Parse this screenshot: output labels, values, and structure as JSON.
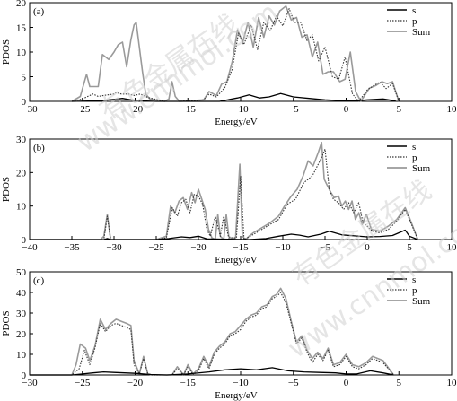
{
  "figure": {
    "background": "#ffffff",
    "colors": {
      "s": "#000000",
      "p": "#333333",
      "sum": "#9a9a9a",
      "frame": "#000000",
      "watermark": "#c8c8c8"
    },
    "watermark": {
      "text_cn": "有色金属在线",
      "text_url": "www.cnnmol.com"
    }
  },
  "chart_data": [
    {
      "type": "line",
      "panel_label": "(a)",
      "xlabel": "Energy/eV",
      "ylabel": "PDOS",
      "xlim": [
        -30,
        10
      ],
      "ylim": [
        0,
        20
      ],
      "xticks": [
        -30,
        -25,
        -20,
        -15,
        -10,
        -5,
        0,
        5,
        10
      ],
      "yticks": [
        0,
        5,
        10,
        15,
        20
      ],
      "legend": [
        "s",
        "p",
        "Sum"
      ],
      "legend_position": "top-right",
      "grid": false,
      "series": [
        {
          "name": "s",
          "line": "solid-thin",
          "x": [
            -26,
            -24,
            -23,
            -22,
            -21.2,
            -20.4,
            -19.2,
            -18,
            -12,
            -10.3,
            -9.2,
            -8.2,
            -7.3,
            -6.2,
            -5,
            -3.5,
            -2,
            -1,
            0,
            0.8,
            2,
            3.5,
            4.7
          ],
          "y": [
            0,
            0.1,
            0.2,
            0.4,
            0.6,
            0.3,
            0.1,
            0,
            0,
            0.7,
            1.3,
            0.7,
            0.9,
            1.6,
            0.9,
            0.6,
            0.3,
            0.2,
            0.1,
            0.1,
            0.3,
            0.5,
            0.1
          ]
        },
        {
          "name": "p",
          "line": "dotted",
          "x": [
            -26,
            -25,
            -24,
            -23.5,
            -23,
            -22,
            -21.8,
            -21.3,
            -20.6,
            -20.1,
            -19.5,
            -18.8,
            -17.2,
            -16.5,
            -15.8,
            -13.5,
            -13,
            -12.3,
            -11.5,
            -10.8,
            -10.2,
            -9.7,
            -9,
            -8.4,
            -7.8,
            -7.2,
            -6.6,
            -6,
            -5.4,
            -4.9,
            -4.3,
            -3.7,
            -3.2,
            -2.6,
            -2,
            -1.3,
            -0.7,
            -0.1,
            0.6,
            1.2,
            2,
            2.6,
            3.2,
            3.8,
            4.4,
            5
          ],
          "y": [
            0,
            0.5,
            1.5,
            1,
            1.2,
            1.5,
            1.8,
            1.5,
            1.5,
            1.2,
            1.5,
            0.8,
            0,
            0,
            0,
            0.3,
            1.5,
            0.9,
            2.8,
            6.5,
            13.8,
            11.5,
            15.5,
            10.5,
            16,
            14.3,
            17.3,
            15.3,
            18.8,
            16,
            16,
            12.3,
            13.5,
            8.2,
            11,
            5,
            4.5,
            9,
            1.5,
            0,
            2.3,
            3.2,
            3.9,
            2.6,
            3.6,
            0
          ]
        },
        {
          "name": "Sum",
          "line": "solid-grey",
          "x": [
            -26,
            -25.2,
            -24.6,
            -24.3,
            -23.9,
            -23.5,
            -23.1,
            -22.5,
            -22,
            -21.6,
            -21.2,
            -20.8,
            -20.4,
            -20.1,
            -19.9,
            -19.6,
            -19.3,
            -19,
            -18.6,
            -17.2,
            -16.8,
            -16.5,
            -16.2,
            -15.8,
            -13.5,
            -13,
            -12.3,
            -11.8,
            -11.3,
            -10.8,
            -10.3,
            -9.8,
            -9.3,
            -8.8,
            -8.3,
            -7.8,
            -7.3,
            -6.8,
            -6.3,
            -5.7,
            -5.2,
            -4.7,
            -4.2,
            -3.7,
            -3.2,
            -2.7,
            -2.2,
            -1.7,
            -1.2,
            -0.6,
            -0.1,
            0.4,
            0.9,
            1.4,
            2.2,
            2.8,
            3.4,
            3.9,
            4.4,
            5
          ],
          "y": [
            0,
            1,
            5.5,
            3,
            3,
            3,
            9.5,
            8.5,
            10,
            11.5,
            12,
            7,
            12.5,
            15.5,
            16,
            11,
            6,
            1.5,
            0.5,
            0,
            0.5,
            4,
            1,
            0,
            0.3,
            2,
            1.2,
            3.5,
            4,
            8,
            14.5,
            12,
            16,
            11,
            17,
            13,
            17.3,
            15.5,
            18.3,
            19.3,
            16.5,
            17,
            13,
            13.5,
            9,
            12,
            5.5,
            6,
            6,
            4,
            4.5,
            10,
            2,
            0,
            2.7,
            3.2,
            4,
            3.6,
            4,
            0
          ]
        }
      ]
    },
    {
      "type": "line",
      "panel_label": "(b)",
      "xlabel": "Energy/eV",
      "ylabel": "PDOS",
      "xlim": [
        -40,
        10
      ],
      "ylim": [
        0,
        30
      ],
      "xticks": [
        -40,
        -35,
        -30,
        -25,
        -20,
        -15,
        -10,
        -5,
        0,
        5,
        10
      ],
      "yticks": [
        0,
        10,
        20,
        30
      ],
      "legend": [
        "s",
        "p",
        "Sum"
      ],
      "legend_position": "top-right",
      "grid": false,
      "series": [
        {
          "name": "s",
          "line": "solid-thin",
          "x": [
            -40,
            -31.2,
            -30.8,
            -30.4,
            -25,
            -23.5,
            -22,
            -21,
            -20,
            -19,
            -14,
            -12,
            -10.5,
            -9,
            -8,
            -7,
            -5.5,
            -4.5,
            -3,
            -1.5,
            0,
            1.5,
            3,
            4.5,
            5,
            6
          ],
          "y": [
            0,
            0,
            0.3,
            0,
            0,
            0.3,
            0.8,
            0.6,
            1,
            0.2,
            0,
            0.3,
            1,
            1.6,
            1.3,
            0.8,
            1.6,
            2.5,
            1.4,
            1.1,
            0.8,
            0.9,
            1.2,
            2.8,
            1,
            0
          ]
        },
        {
          "name": "p",
          "line": "dotted",
          "x": [
            -40,
            -31.2,
            -30.8,
            -30.4,
            -25,
            -23.8,
            -23.1,
            -22.5,
            -22,
            -21.5,
            -21,
            -20.5,
            -20,
            -19.5,
            -19,
            -18.6,
            -18,
            -17.4,
            -17,
            -16.4,
            -16,
            -15.5,
            -15,
            -14.6,
            -14.2,
            -13.5,
            -12.5,
            -11.5,
            -10.5,
            -9.5,
            -8.5,
            -7.5,
            -6.5,
            -5.5,
            -5,
            -4.5,
            -4,
            -3.4,
            -2.8,
            -2.2,
            -1.6,
            -1,
            -0.5,
            0,
            0.6,
            1.5,
            2.5,
            3.5,
            4.5,
            5,
            6
          ],
          "y": [
            0,
            0,
            7,
            0,
            0,
            0.5,
            9.5,
            7,
            11,
            12,
            8,
            13.5,
            13,
            10.5,
            3,
            1,
            7,
            1,
            7,
            0.5,
            0.5,
            0.5,
            19,
            0,
            0.5,
            1.5,
            3,
            4.5,
            6,
            10.5,
            12,
            17,
            19,
            24,
            27,
            15,
            12,
            11,
            9,
            11,
            8,
            11,
            5,
            4,
            2.5,
            2,
            3,
            5.5,
            9,
            6,
            0
          ]
        },
        {
          "name": "Sum",
          "line": "solid-grey",
          "x": [
            -40,
            -31.6,
            -31.2,
            -30.8,
            -30.4,
            -25,
            -23.8,
            -23.3,
            -22.8,
            -22.3,
            -21.8,
            -21.3,
            -20.8,
            -20.4,
            -20,
            -19.6,
            -19.2,
            -18.8,
            -18.4,
            -18,
            -17.7,
            -17.4,
            -17,
            -16.7,
            -16.4,
            -16,
            -15.6,
            -15.1,
            -14.8,
            -14.4,
            -14,
            -13.5,
            -12.5,
            -11.5,
            -10.5,
            -9.8,
            -9,
            -8.3,
            -7.6,
            -7,
            -6.4,
            -5.8,
            -5.4,
            -5.1,
            -4.7,
            -4.3,
            -3.9,
            -3.4,
            -3,
            -2.6,
            -2.2,
            -1.8,
            -1.4,
            -1,
            -0.6,
            -0.1,
            0.5,
            1.5,
            2.5,
            3.5,
            4.5,
            5,
            6
          ],
          "y": [
            0,
            0,
            1,
            7.5,
            0,
            0,
            1,
            10,
            8,
            11.5,
            12.5,
            9,
            14,
            11,
            15,
            12,
            9,
            3,
            0.5,
            0,
            7.5,
            1,
            0,
            7.5,
            1,
            0,
            0.5,
            22.5,
            1,
            0,
            1,
            2,
            3.5,
            5,
            7,
            10,
            13,
            15,
            19,
            23.5,
            22,
            26,
            29,
            18,
            16,
            14,
            12.5,
            13,
            10,
            11.5,
            9,
            11.5,
            6,
            8,
            4.5,
            7.5,
            3,
            2.5,
            4,
            6,
            9.5,
            6.5,
            0
          ]
        }
      ]
    },
    {
      "type": "line",
      "panel_label": "(c)",
      "xlabel": "Energy/eV",
      "ylabel": "PDOS",
      "xlim": [
        -30,
        10
      ],
      "ylim": [
        0,
        50
      ],
      "xticks": [
        -30,
        -25,
        -20,
        -15,
        -10,
        -5,
        0,
        5,
        10
      ],
      "yticks": [
        0,
        10,
        20,
        30,
        40,
        50
      ],
      "legend": [
        "s",
        "p",
        "Sum"
      ],
      "legend_position": "top-right",
      "grid": false,
      "series": [
        {
          "name": "s",
          "line": "solid-thin",
          "x": [
            -30,
            -26,
            -25,
            -24,
            -23,
            -22,
            -21,
            -20,
            -19.2,
            -18.5,
            -17,
            -15,
            -13,
            -11.5,
            -10,
            -8.5,
            -7,
            -5.5,
            -4,
            -2.5,
            -1,
            0,
            1,
            2.3,
            3.5,
            4.5
          ],
          "y": [
            0,
            0,
            0.5,
            1,
            1.5,
            1.2,
            1,
            0.8,
            0.5,
            0.2,
            0,
            0.5,
            1.5,
            2.5,
            3,
            2.5,
            3.5,
            2,
            1.5,
            1.2,
            1,
            0.5,
            0.5,
            2,
            1,
            0
          ]
        },
        {
          "name": "p",
          "line": "dotted",
          "x": [
            -30,
            -26,
            -25.3,
            -24.8,
            -24.3,
            -23.8,
            -23.3,
            -22.8,
            -22.3,
            -21.8,
            -21.3,
            -20.8,
            -20.4,
            -20.1,
            -19.6,
            -19.2,
            -18.8,
            -18.4,
            -17.5,
            -16.5,
            -16,
            -15.4,
            -15,
            -14.5,
            -14,
            -13.5,
            -13,
            -12.5,
            -12,
            -11.5,
            -11,
            -10.5,
            -10,
            -9.5,
            -9,
            -8.5,
            -8,
            -7.5,
            -7,
            -6.6,
            -6.2,
            -5.7,
            -5.2,
            -4.7,
            -4.2,
            -3.7,
            -3.2,
            -2.7,
            -2.2,
            -1.7,
            -1.2,
            -0.6,
            0,
            0.6,
            1.2,
            1.9,
            2.5,
            3,
            3.5,
            4.5
          ],
          "y": [
            0,
            0,
            3,
            12,
            5,
            13,
            25,
            21,
            24,
            25,
            24,
            23,
            22,
            5,
            0.5,
            8,
            0.5,
            0,
            0,
            0,
            3,
            0,
            4,
            0,
            2,
            8,
            3,
            10,
            13,
            15,
            19,
            20,
            22,
            26,
            28,
            29,
            32,
            33,
            37,
            38,
            40,
            35,
            25,
            15,
            18,
            11,
            6,
            10,
            7,
            12,
            4,
            5,
            9,
            4,
            3,
            5,
            8,
            7,
            6,
            0
          ]
        },
        {
          "name": "Sum",
          "line": "solid-grey",
          "x": [
            -30,
            -26,
            -25.6,
            -25.2,
            -24.7,
            -24.3,
            -23.8,
            -23.3,
            -22.8,
            -22.3,
            -21.8,
            -21.3,
            -20.8,
            -20.4,
            -20.1,
            -19.6,
            -19.2,
            -18.8,
            -18.4,
            -17.5,
            -16.5,
            -16,
            -15.4,
            -15,
            -14.5,
            -14,
            -13.5,
            -13,
            -12.5,
            -12,
            -11.5,
            -11,
            -10.5,
            -10,
            -9.5,
            -9,
            -8.5,
            -8,
            -7.5,
            -7,
            -6.6,
            -6.2,
            -5.7,
            -5.2,
            -4.7,
            -4.2,
            -3.7,
            -3.2,
            -2.7,
            -2.2,
            -1.7,
            -1.2,
            -0.6,
            0,
            0.6,
            1.2,
            1.9,
            2.5,
            3,
            3.5,
            4.5
          ],
          "y": [
            0,
            0,
            5,
            15,
            13,
            7,
            14,
            27,
            22,
            25,
            27,
            26,
            25,
            24,
            7,
            0.5,
            9,
            0.5,
            0,
            0,
            0,
            4,
            0,
            5,
            0.5,
            3,
            9,
            4,
            11,
            14,
            16,
            20,
            21,
            24,
            27,
            29,
            30,
            33,
            34,
            38,
            39,
            42,
            37,
            26,
            16,
            19,
            12,
            8,
            11,
            8,
            13,
            5,
            6,
            10,
            5,
            4,
            6,
            9,
            8,
            7,
            0
          ]
        }
      ]
    }
  ]
}
